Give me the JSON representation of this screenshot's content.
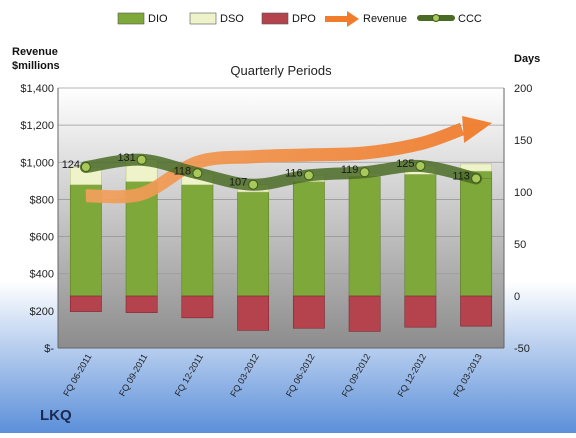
{
  "chart_data": {
    "type": "bar",
    "title": "Quarterly Periods",
    "company": "LKQ",
    "left_axis_label": [
      "Revenue",
      "$millions"
    ],
    "right_axis_label": "Days",
    "categories": [
      "FQ 06-2011",
      "FQ 09-2011",
      "FQ 12-2011",
      "FQ 03-2012",
      "FQ 06-2012",
      "FQ 09-2012",
      "FQ 12-2012",
      "FQ 03-2013"
    ],
    "left_ticks": [
      "$-",
      "$200",
      "$400",
      "$600",
      "$800",
      "$1,000",
      "$1,200",
      "$1,400"
    ],
    "right_ticks": [
      "-50",
      "0",
      "50",
      "100",
      "150",
      "200"
    ],
    "ylim_left": [
      0,
      1400
    ],
    "ylim_right": [
      -50,
      200
    ],
    "series": [
      {
        "name": "DIO",
        "axis": "right",
        "values": [
          107,
          110,
          107,
          100,
          110,
          115,
          117,
          120
        ],
        "color": "#7fa83a"
      },
      {
        "name": "DSO",
        "axis": "right",
        "values": [
          17,
          21,
          11,
          7,
          6,
          4,
          8,
          -7
        ],
        "color": "#eef3c9"
      },
      {
        "name": "DPO",
        "axis": "right",
        "values": [
          -15,
          -16,
          -21,
          -33,
          -31,
          -34,
          -30,
          -29
        ],
        "color": "#b5434d"
      },
      {
        "name": "Revenue",
        "axis": "left",
        "values": [
          820,
          830,
          1000,
          1030,
          1040,
          1050,
          1100,
          1190
        ],
        "color": "#f0a05a"
      },
      {
        "name": "CCC",
        "axis": "right",
        "values": [
          124,
          131,
          118,
          107,
          116,
          119,
          125,
          113
        ],
        "color": "#4a6b26"
      }
    ],
    "ccc_labels": [
      "124",
      "131",
      "118",
      "107",
      "116",
      "119",
      "125",
      "113"
    ],
    "legend_placement": "top",
    "grid": true
  }
}
